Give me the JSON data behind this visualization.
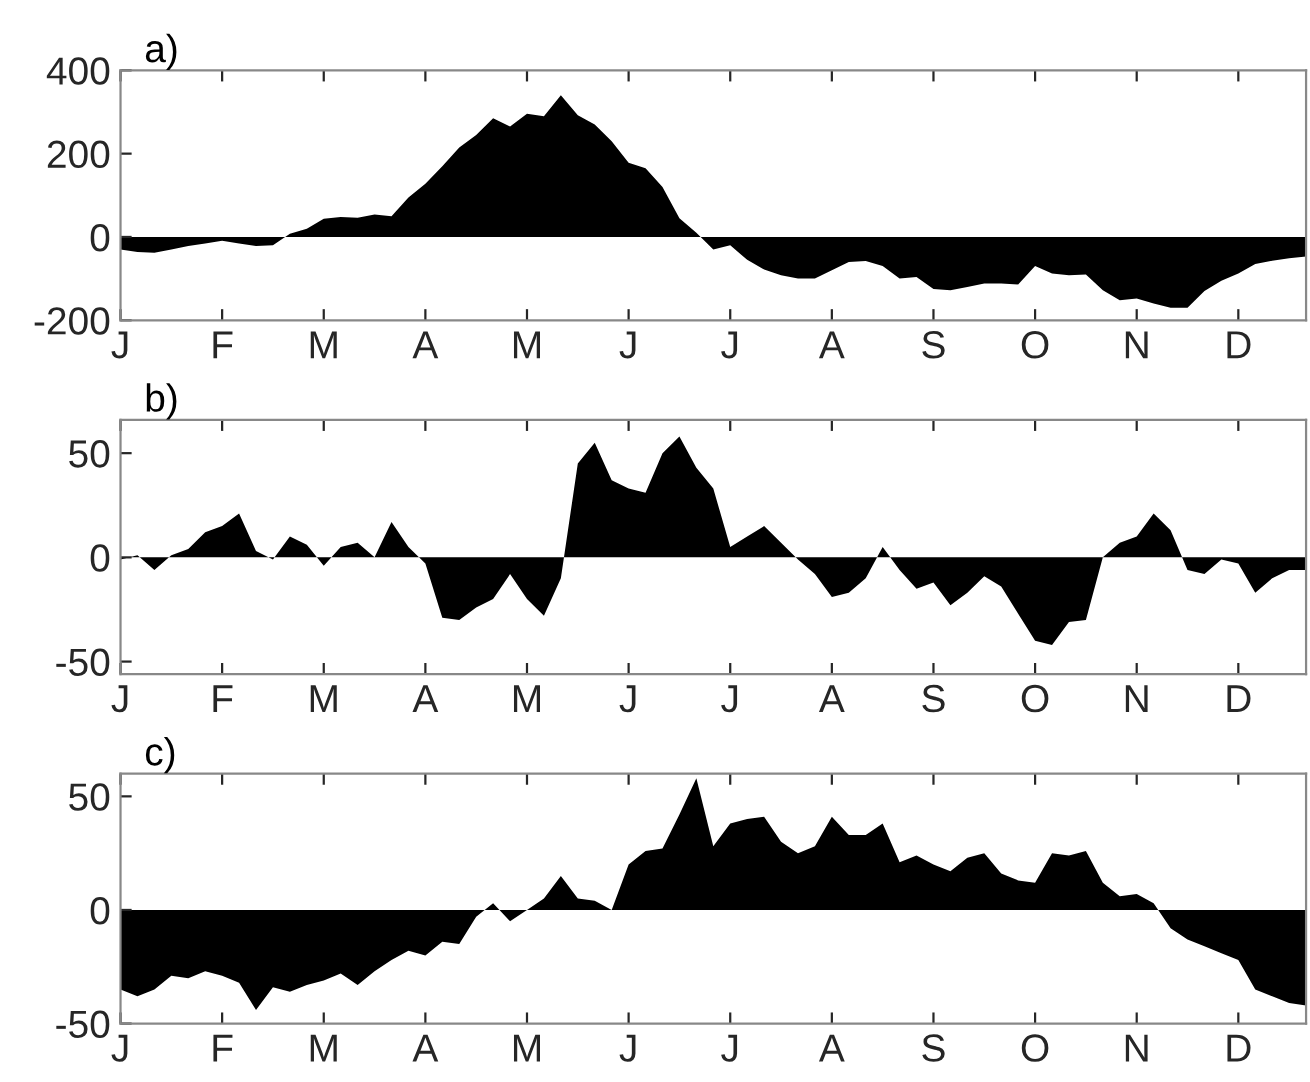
{
  "chart_data": [
    {
      "type": "area",
      "title": "a)",
      "ylim": [
        -200,
        400
      ],
      "yticks": [
        -200,
        0,
        200,
        400
      ],
      "categories": [
        "J",
        null,
        null,
        null,
        null,
        null,
        "F",
        null,
        null,
        null,
        null,
        null,
        "M",
        null,
        null,
        null,
        null,
        null,
        "A",
        null,
        null,
        null,
        null,
        null,
        "M",
        null,
        null,
        null,
        null,
        null,
        "J",
        null,
        null,
        null,
        null,
        null,
        "J",
        null,
        null,
        null,
        null,
        null,
        "A",
        null,
        null,
        null,
        null,
        null,
        "S",
        null,
        null,
        null,
        null,
        null,
        "O",
        null,
        null,
        null,
        null,
        null,
        "N",
        null,
        null,
        null,
        null,
        null,
        "D",
        null,
        null,
        null,
        null
      ],
      "series": [
        {
          "color": "#000000",
          "values": [
            -30,
            -36,
            -38,
            -30,
            -22,
            -16,
            -9,
            -16,
            -22,
            -20,
            8,
            20,
            44,
            48,
            46,
            54,
            50,
            95,
            128,
            170,
            215,
            245,
            285,
            265,
            296,
            290,
            340,
            292,
            270,
            230,
            178,
            165,
            120,
            45,
            10,
            -30,
            -20,
            -55,
            -78,
            -92,
            -100,
            -100,
            -80,
            -60,
            -58,
            -70,
            -100,
            -96,
            -125,
            -128,
            -120,
            -112,
            -112,
            -114,
            -70,
            -88,
            -92,
            -90,
            -128,
            -152,
            -148,
            -160,
            -170,
            -170,
            -130,
            -105,
            -88,
            -65,
            -57,
            -51,
            -47
          ]
        }
      ]
    },
    {
      "type": "area",
      "title": "b)",
      "ylim": [
        -56,
        66
      ],
      "yticks": [
        -50,
        0,
        50
      ],
      "categories": [
        "J",
        null,
        null,
        null,
        null,
        null,
        "F",
        null,
        null,
        null,
        null,
        null,
        "M",
        null,
        null,
        null,
        null,
        null,
        "A",
        null,
        null,
        null,
        null,
        null,
        "M",
        null,
        null,
        null,
        null,
        null,
        "J",
        null,
        null,
        null,
        null,
        null,
        "J",
        null,
        null,
        null,
        null,
        null,
        "A",
        null,
        null,
        null,
        null,
        null,
        "S",
        null,
        null,
        null,
        null,
        null,
        "O",
        null,
        null,
        null,
        null,
        null,
        "N",
        null,
        null,
        null,
        null,
        null,
        "D",
        null,
        null,
        null,
        null
      ],
      "series": [
        {
          "color": "#000000",
          "values": [
            -1,
            1,
            -6,
            1,
            4,
            12,
            15,
            21,
            3,
            -1,
            10,
            6,
            -4,
            5,
            7,
            0,
            17,
            5,
            -3,
            -29,
            -30,
            -24,
            -20,
            -8,
            -20,
            -28,
            -10,
            45,
            55,
            37,
            33,
            31,
            50,
            58,
            43,
            33,
            5,
            10,
            15,
            7,
            -1,
            -8,
            -19,
            -17,
            -10,
            5,
            -6,
            -15,
            -12,
            -23,
            -17,
            -9,
            -14,
            -27,
            -40,
            -42,
            -31,
            -30,
            0,
            7,
            10,
            21,
            13,
            -6,
            -8,
            -1,
            -3,
            -17,
            -10,
            -6,
            -6
          ]
        }
      ]
    },
    {
      "type": "area",
      "title": "c)",
      "ylim": [
        -50,
        60
      ],
      "yticks": [
        -50,
        0,
        50
      ],
      "categories": [
        "J",
        null,
        null,
        null,
        null,
        null,
        "F",
        null,
        null,
        null,
        null,
        null,
        "M",
        null,
        null,
        null,
        null,
        null,
        "A",
        null,
        null,
        null,
        null,
        null,
        "M",
        null,
        null,
        null,
        null,
        null,
        "J",
        null,
        null,
        null,
        null,
        null,
        "J",
        null,
        null,
        null,
        null,
        null,
        "A",
        null,
        null,
        null,
        null,
        null,
        "S",
        null,
        null,
        null,
        null,
        null,
        "O",
        null,
        null,
        null,
        null,
        null,
        "N",
        null,
        null,
        null,
        null,
        null,
        "D",
        null,
        null,
        null,
        null
      ],
      "series": [
        {
          "color": "#000000",
          "values": [
            -35,
            -38,
            -35,
            -29,
            -30,
            -27,
            -29,
            -32,
            -44,
            -34,
            -36,
            -33,
            -31,
            -28,
            -33,
            -27,
            -22,
            -18,
            -20,
            -14,
            -15,
            -3,
            3,
            -5,
            0,
            5,
            15,
            5,
            4,
            0,
            20,
            26,
            27,
            42,
            58,
            28,
            38,
            40,
            41,
            30,
            25,
            28,
            41,
            33,
            33,
            38,
            21,
            24,
            20,
            17,
            23,
            25,
            16,
            13,
            12,
            25,
            24,
            26,
            12,
            6,
            7,
            3,
            -8,
            -13,
            -16,
            -19,
            -22,
            -35,
            -38,
            -41,
            -42
          ]
        }
      ]
    }
  ]
}
